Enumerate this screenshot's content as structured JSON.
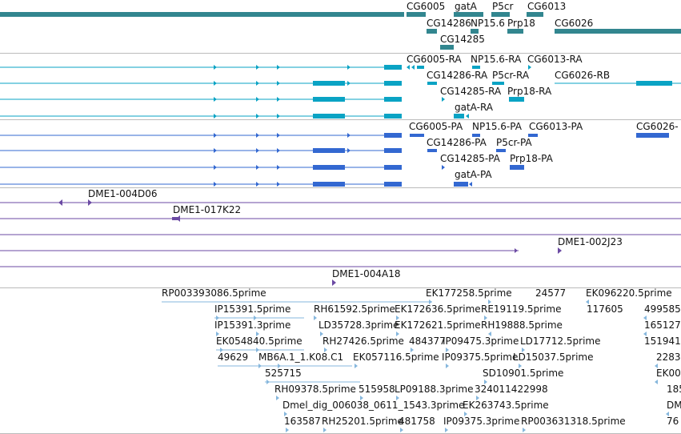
{
  "colors": {
    "gene": "#32868f",
    "transcript": "#0aa3c4",
    "protein": "#3368d1",
    "clone": "#6b4aa3",
    "est": "#86b7dd",
    "separator": "#bbbbbb",
    "label": "#111111"
  },
  "tracks": [
    {
      "id": "gene-track",
      "labels": [
        "CG6005",
        "gatA",
        "P5cr",
        "CG6013",
        "CG14286",
        "NP15.6",
        "Prp18",
        "CG6026",
        "CG14285"
      ]
    },
    {
      "id": "transcript-track",
      "labels": [
        "CG6005-RA",
        "NP15.6-RA",
        "CG6013-RA",
        "CG14286-RA",
        "P5cr-RA",
        "CG6026-RB",
        "CG14285-RA",
        "Prp18-RA",
        "gatA-RA"
      ]
    },
    {
      "id": "protein-track",
      "labels": [
        "CG6005-PA",
        "NP15.6-PA",
        "CG6013-PA",
        "CG6026-",
        "CG14286-PA",
        "P5cr-PA",
        "CG14285-PA",
        "Prp18-PA",
        "gatA-PA"
      ]
    },
    {
      "id": "clone-track",
      "labels": [
        "DME1-004D06",
        "DME1-017K22",
        "DME1-002J23",
        "DME1-004A18"
      ]
    },
    {
      "id": "est-track",
      "labels": [
        "RP003393086.5prime",
        "EK177258.5prime",
        "24577",
        "EK096220.5prime",
        "117605",
        "499585",
        "IP15391.5prime",
        "RH61592.5prime",
        "EK172636.5prime",
        "RE19119.5prime",
        "165127",
        "IP15391.3prime",
        "LD35728.3prime",
        "EK172621.5prime",
        "RH19888.5prime",
        "151941",
        "EK054840.5prime",
        "RH27426.5prime",
        "484377",
        "IP09475.3prime",
        "LD17712.5prime",
        "49629",
        "MB6A.1_1.K08.C1",
        "EK057116.5prime",
        "IP09375.5prime",
        "LD15037.5prime",
        "2283",
        "525715",
        "SD10901.5prime",
        "EK00",
        "RH09378.5prime",
        "515958",
        "LP09188.3prime",
        "324011422998",
        "185",
        "Dmel_dig_006038_0611_1543.3prime",
        "EK263743.5prime",
        "DM",
        "163587",
        "RH25201.5prime",
        "481758",
        "IP09375.3prime",
        "RP003631318.5prime",
        "76"
      ]
    }
  ]
}
